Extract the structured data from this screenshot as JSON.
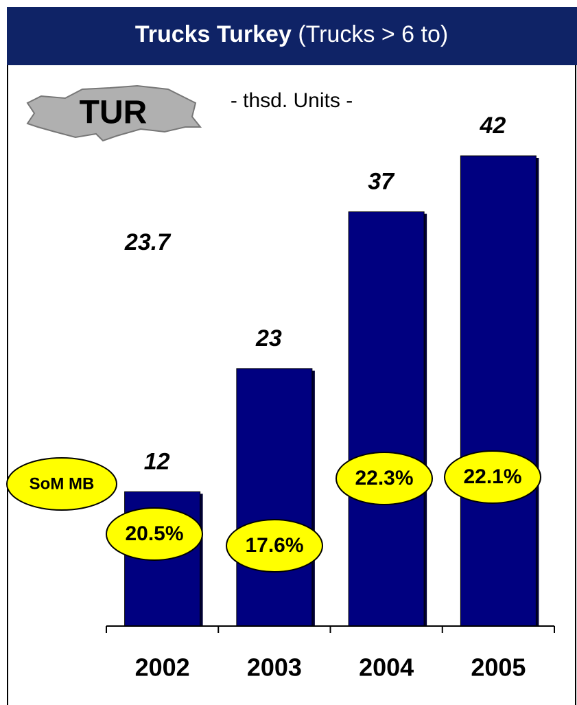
{
  "chart_data": {
    "type": "bar",
    "title": "Trucks Turkey",
    "subtitle": "(Trucks > 6 to)",
    "region_label": "TUR",
    "unit_label": "- thsd. Units -",
    "annotation": "23.7",
    "categories": [
      "2002",
      "2003",
      "2004",
      "2005"
    ],
    "values": [
      12,
      23,
      37,
      42
    ],
    "color": "#000080",
    "share": {
      "name": "SoM MB",
      "color": "#ffff00",
      "values": [
        20.5,
        17.6,
        22.3,
        22.1
      ],
      "value_labels": [
        "20.5%",
        "17.6%",
        "22.3%",
        "22.1%"
      ]
    }
  }
}
